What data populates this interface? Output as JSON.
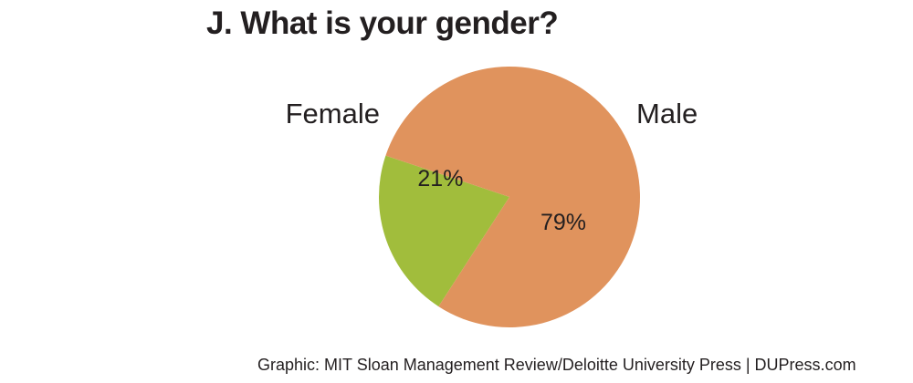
{
  "chart_data": {
    "type": "pie",
    "title": "J. What is your gender?",
    "slices": [
      {
        "label": "Female",
        "value": 21,
        "display": "21%",
        "color": "#a1bd3c"
      },
      {
        "label": "Male",
        "value": 79,
        "display": "79%",
        "color": "#e0935d"
      }
    ]
  },
  "footer": {
    "credit": "Graphic: MIT Sloan Management Review/Deloitte University Press  |  DUPress.com"
  }
}
